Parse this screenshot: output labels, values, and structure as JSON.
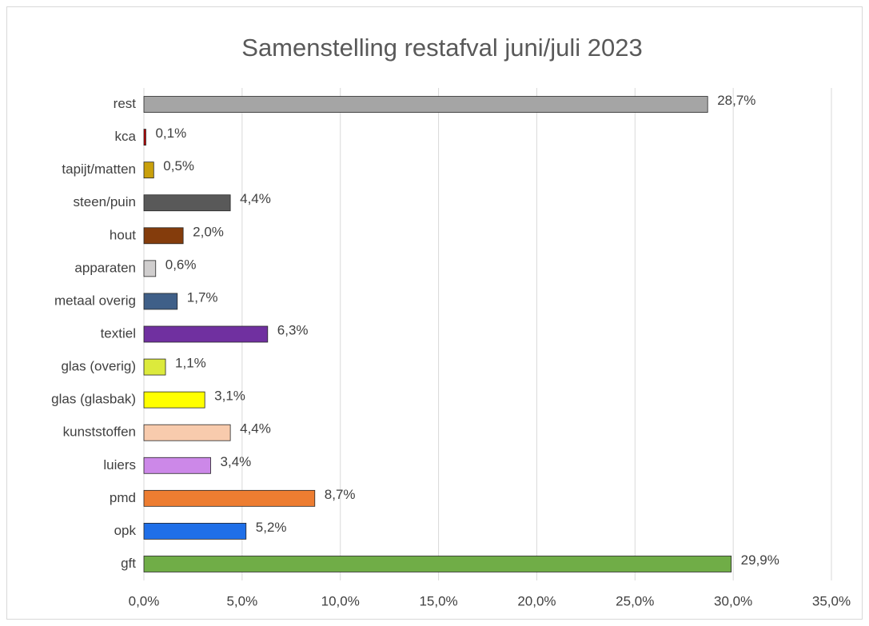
{
  "chart_data": {
    "type": "bar",
    "orientation": "horizontal",
    "title": "Samenstelling restafval juni/juli 2023",
    "categories": [
      "rest",
      "kca",
      "tapijt/matten",
      "steen/puin",
      "hout",
      "apparaten",
      "metaal overig",
      "textiel",
      "glas (overig)",
      "glas (glasbak)",
      "kunststoffen",
      "luiers",
      "pmd",
      "opk",
      "gft"
    ],
    "values": [
      28.7,
      0.1,
      0.5,
      4.4,
      2.0,
      0.6,
      1.7,
      6.3,
      1.1,
      3.1,
      4.4,
      3.4,
      8.7,
      5.2,
      29.9
    ],
    "value_labels": [
      "28,7%",
      "0,1%",
      "0,5%",
      "4,4%",
      "2,0%",
      "0,6%",
      "1,7%",
      "6,3%",
      "1,1%",
      "3,1%",
      "4,4%",
      "3,4%",
      "8,7%",
      "5,2%",
      "29,9%"
    ],
    "colors": [
      "#a5a5a5",
      "#c00000",
      "#c9a00c",
      "#595959",
      "#843c0c",
      "#d0cece",
      "#3f5f88",
      "#7030a0",
      "#dcea3c",
      "#ffff00",
      "#f8cbad",
      "#cc88e8",
      "#ed7d31",
      "#1f6fe8",
      "#70ad47"
    ],
    "xlim": [
      0,
      35
    ],
    "xticks": [
      {
        "value": 0,
        "label": "0,0%"
      },
      {
        "value": 5,
        "label": "5,0%"
      },
      {
        "value": 10,
        "label": "10,0%"
      },
      {
        "value": 15,
        "label": "15,0%"
      },
      {
        "value": 20,
        "label": "20,0%"
      },
      {
        "value": 25,
        "label": "25,0%"
      },
      {
        "value": 30,
        "label": "30,0%"
      },
      {
        "value": 35,
        "label": "35,0%"
      }
    ],
    "grid": true
  }
}
